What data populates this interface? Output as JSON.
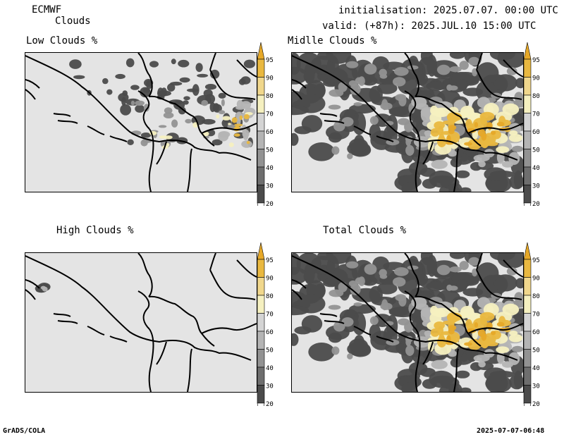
{
  "header": {
    "model": "ECMWF",
    "product": "Clouds",
    "init_label": "initialisation: 2025.07.07. 00:00 UTC",
    "valid_label": "valid: (+87h): 2025.JUL.10 15:00 UTC"
  },
  "panels": [
    {
      "title": "Low Clouds %"
    },
    {
      "title": "Midlle Clouds %"
    },
    {
      "title": "High Clouds %"
    },
    {
      "title": "Total Clouds %"
    }
  ],
  "colorbar": {
    "levels": [
      "20",
      "30",
      "40",
      "50",
      "60",
      "70",
      "80",
      "90",
      "95"
    ],
    "colors": [
      "#ffffff",
      "#4b4b4b",
      "#6e6e6e",
      "#929292",
      "#b4b4b4",
      "#d4d4d4",
      "#f5f0c0",
      "#f0d78c",
      "#e9b840",
      "#e6a828"
    ]
  },
  "footer": {
    "left": "GrADS/COLA",
    "right": "2025-07-07-06:48"
  }
}
